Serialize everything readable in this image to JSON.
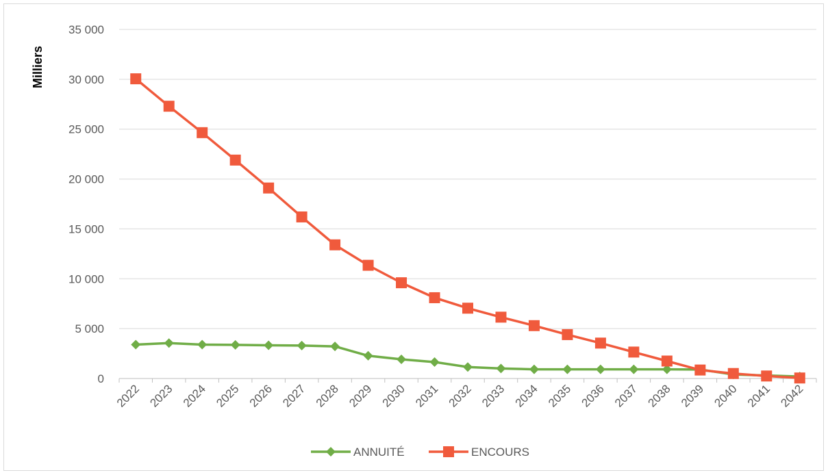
{
  "chart_data": {
    "type": "line",
    "title": "",
    "xlabel": "",
    "ylabel": "Milliers",
    "ylim": [
      0,
      35000
    ],
    "yticks": [
      0,
      5000,
      10000,
      15000,
      20000,
      25000,
      30000,
      35000
    ],
    "ytick_labels": [
      "0",
      "5 000",
      "10 000",
      "15 000",
      "20 000",
      "25 000",
      "30 000",
      "35 000"
    ],
    "categories": [
      "2022",
      "2023",
      "2024",
      "2025",
      "2026",
      "2027",
      "2028",
      "2029",
      "2030",
      "2031",
      "2032",
      "2033",
      "2034",
      "2035",
      "2036",
      "2037",
      "2038",
      "2039",
      "2040",
      "2041",
      "2042"
    ],
    "grid": "horizontal",
    "legend_position": "bottom",
    "series": [
      {
        "name": "ANNUITÉ",
        "color": "#70ad47",
        "marker": "diamond",
        "values": [
          3400,
          3550,
          3400,
          3370,
          3330,
          3300,
          3220,
          2280,
          1920,
          1650,
          1150,
          1000,
          920,
          920,
          920,
          920,
          920,
          900,
          400,
          300,
          200
        ]
      },
      {
        "name": "ENCOURS",
        "color": "#f05a3c",
        "marker": "square",
        "values": [
          30050,
          27300,
          24650,
          21900,
          19100,
          16200,
          13400,
          11350,
          9600,
          8100,
          7050,
          6150,
          5300,
          4400,
          3550,
          2650,
          1750,
          850,
          500,
          250,
          50
        ]
      }
    ]
  }
}
